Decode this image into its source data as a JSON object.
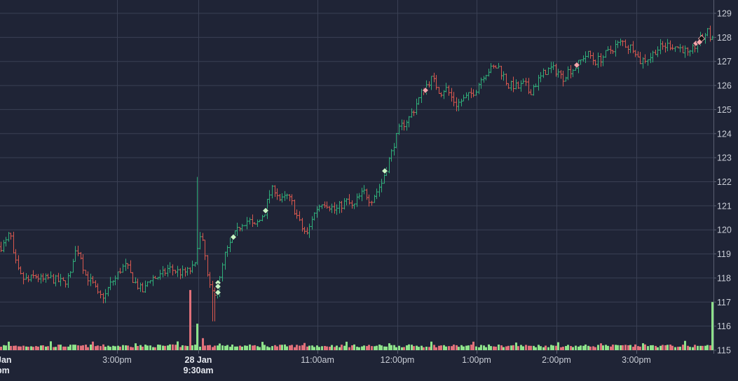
{
  "colors": {
    "background": "#1f2436",
    "grid": "#3a4054",
    "axis_text": "#c9cdd6",
    "axis_bold_text": "#e4e7ee",
    "up": "#2fae7a",
    "down": "#d9584f",
    "volume_up": "#8de28a",
    "volume_down": "#e0707a",
    "marker_buy": "#c8f5c3",
    "marker_sell": "#f4a5aa"
  },
  "chart_data": {
    "type": "ohlc",
    "title": "",
    "xlabel": "",
    "ylabel": "",
    "ylim": [
      115,
      129.3
    ],
    "y_ticks": [
      115,
      116,
      117,
      118,
      119,
      120,
      121,
      122,
      123,
      124,
      125,
      126,
      127,
      128,
      129
    ],
    "y_tick_labels": [
      "115",
      "116",
      "117",
      "118",
      "119",
      "120",
      "121",
      "122",
      "123",
      "124",
      "125",
      "126",
      "127",
      "128",
      "129"
    ],
    "x_ticks": [
      {
        "key": "jan-prev",
        "label": "Jan",
        "sublabel": "pm",
        "bold": true
      },
      {
        "key": "3pm-a",
        "label": "3:00pm",
        "sublabel": "",
        "bold": false
      },
      {
        "key": "28-jan",
        "label": "28 Jan",
        "sublabel": "9:30am",
        "bold": true
      },
      {
        "key": "11am",
        "label": "11:00am",
        "sublabel": "",
        "bold": false
      },
      {
        "key": "12pm",
        "label": "12:00pm",
        "sublabel": "",
        "bold": false
      },
      {
        "key": "1pm",
        "label": "1:00pm",
        "sublabel": "",
        "bold": false
      },
      {
        "key": "2pm",
        "label": "2:00pm",
        "sublabel": "",
        "bold": false
      },
      {
        "key": "3pm-b",
        "label": "3:00pm",
        "sublabel": "",
        "bold": false
      }
    ],
    "grid": true,
    "price_anchors": [
      [
        0,
        119.3
      ],
      [
        6,
        119.4
      ],
      [
        10,
        119.6
      ],
      [
        14,
        119.9
      ],
      [
        18,
        119.0
      ],
      [
        24,
        118.4
      ],
      [
        30,
        118.0
      ],
      [
        40,
        117.9
      ],
      [
        50,
        118.1
      ],
      [
        60,
        117.9
      ],
      [
        70,
        118.0
      ],
      [
        80,
        117.9
      ],
      [
        90,
        117.8
      ],
      [
        100,
        118.1
      ],
      [
        105,
        119.0
      ],
      [
        110,
        119.2
      ],
      [
        115,
        118.9
      ],
      [
        120,
        118.2
      ],
      [
        128,
        117.9
      ],
      [
        135,
        117.6
      ],
      [
        140,
        117.2
      ],
      [
        150,
        117.3
      ],
      [
        158,
        117.8
      ],
      [
        165,
        118.0
      ],
      [
        172,
        118.4
      ],
      [
        180,
        118.5
      ],
      [
        190,
        117.9
      ],
      [
        198,
        117.6
      ],
      [
        205,
        117.4
      ],
      [
        212,
        118.0
      ],
      [
        220,
        118.0
      ],
      [
        230,
        118.1
      ],
      [
        240,
        118.4
      ],
      [
        250,
        118.3
      ],
      [
        260,
        118.2
      ],
      [
        270,
        118.3
      ],
      [
        278,
        118.5
      ],
      [
        282,
        119.7
      ],
      [
        288,
        119.6
      ],
      [
        293,
        118.7
      ],
      [
        298,
        117.6
      ],
      [
        303,
        117.4
      ],
      [
        310,
        117.5
      ],
      [
        315,
        118.2
      ],
      [
        320,
        118.9
      ],
      [
        328,
        119.4
      ],
      [
        335,
        119.8
      ],
      [
        345,
        120.3
      ],
      [
        355,
        120.4
      ],
      [
        362,
        120.1
      ],
      [
        370,
        120.4
      ],
      [
        378,
        120.8
      ],
      [
        385,
        121.6
      ],
      [
        392,
        121.7
      ],
      [
        400,
        121.2
      ],
      [
        410,
        121.4
      ],
      [
        418,
        121.0
      ],
      [
        425,
        120.4
      ],
      [
        432,
        120.0
      ],
      [
        438,
        119.8
      ],
      [
        445,
        120.5
      ],
      [
        452,
        120.9
      ],
      [
        460,
        121.2
      ],
      [
        470,
        121.0
      ],
      [
        478,
        120.8
      ],
      [
        485,
        121.0
      ],
      [
        495,
        121.2
      ],
      [
        503,
        120.9
      ],
      [
        510,
        121.3
      ],
      [
        520,
        121.6
      ],
      [
        528,
        121.2
      ],
      [
        535,
        121.5
      ],
      [
        545,
        122.0
      ],
      [
        550,
        122.5
      ],
      [
        556,
        123.0
      ],
      [
        562,
        123.6
      ],
      [
        568,
        124.1
      ],
      [
        575,
        124.4
      ],
      [
        582,
        124.6
      ],
      [
        590,
        125.0
      ],
      [
        598,
        125.5
      ],
      [
        605,
        125.9
      ],
      [
        610,
        126.1
      ],
      [
        616,
        126.3
      ],
      [
        622,
        126.0
      ],
      [
        628,
        125.7
      ],
      [
        635,
        125.9
      ],
      [
        642,
        125.6
      ],
      [
        650,
        125.2
      ],
      [
        660,
        125.4
      ],
      [
        670,
        125.6
      ],
      [
        680,
        125.9
      ],
      [
        688,
        126.4
      ],
      [
        695,
        126.6
      ],
      [
        702,
        126.7
      ],
      [
        710,
        126.8
      ],
      [
        718,
        126.4
      ],
      [
        725,
        126.0
      ],
      [
        732,
        126.0
      ],
      [
        740,
        125.9
      ],
      [
        748,
        126.1
      ],
      [
        755,
        125.7
      ],
      [
        762,
        126.0
      ],
      [
        770,
        126.3
      ],
      [
        778,
        126.6
      ],
      [
        786,
        126.7
      ],
      [
        795,
        126.6
      ],
      [
        802,
        126.3
      ],
      [
        810,
        126.6
      ],
      [
        818,
        126.7
      ],
      [
        825,
        126.9
      ],
      [
        832,
        127.2
      ],
      [
        840,
        127.3
      ],
      [
        848,
        127.0
      ],
      [
        856,
        127.1
      ],
      [
        864,
        127.3
      ],
      [
        872,
        127.5
      ],
      [
        880,
        127.7
      ],
      [
        888,
        127.8
      ],
      [
        896,
        127.6
      ],
      [
        904,
        127.6
      ],
      [
        912,
        127.0
      ],
      [
        920,
        127.1
      ],
      [
        928,
        127.2
      ],
      [
        936,
        127.5
      ],
      [
        945,
        127.6
      ],
      [
        955,
        127.7
      ],
      [
        965,
        127.6
      ],
      [
        975,
        127.5
      ],
      [
        983,
        127.2
      ],
      [
        990,
        127.6
      ],
      [
        998,
        127.9
      ],
      [
        1004,
        128.0
      ],
      [
        1008,
        128.3
      ],
      [
        1012,
        128.0
      ]
    ],
    "volume_spikes": {
      "272": 117.5,
      "281": 116.1,
      "289": 115.5,
      "1016": 117.0
    },
    "markers": [
      {
        "type": "buy",
        "x": 311,
        "y": 117.8
      },
      {
        "type": "buy",
        "x": 311,
        "y": 117.4
      },
      {
        "type": "buy",
        "x": 311,
        "y": 117.65
      },
      {
        "type": "buy",
        "x": 333,
        "y": 119.7
      },
      {
        "type": "buy",
        "x": 379,
        "y": 120.8
      },
      {
        "type": "buy",
        "x": 549,
        "y": 122.45
      },
      {
        "type": "sell",
        "x": 607,
        "y": 125.8
      },
      {
        "type": "sell",
        "x": 823,
        "y": 126.85
      },
      {
        "type": "sell",
        "x": 993,
        "y": 127.75
      },
      {
        "type": "sell",
        "x": 998,
        "y": 127.8
      },
      {
        "type": "sell-dark",
        "x": 1001,
        "y": 127.95
      }
    ]
  }
}
